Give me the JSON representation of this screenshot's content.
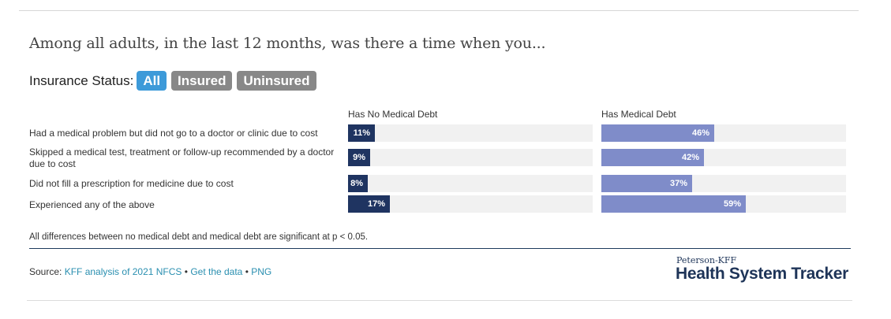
{
  "title": "Among all adults, in the last 12 months, was there a time when you...",
  "filter": {
    "label": "Insurance Status:",
    "options": [
      "All",
      "Insured",
      "Uninsured"
    ],
    "selected": "All"
  },
  "colors": {
    "no_debt": "#1f3461",
    "debt": "#7f8cc9",
    "track": "#f1f1f1",
    "active_pill": "#3d9ad9",
    "inactive_pill": "#888888"
  },
  "chart_data": {
    "type": "bar",
    "orientation": "horizontal",
    "xlim": [
      0,
      100
    ],
    "categories": [
      "Had a medical problem but did not go to a doctor or clinic due to cost",
      "Skipped a medical test, treatment or follow-up recommended by a doctor due to cost",
      "Did not fill a prescription for medicine due to cost",
      "Experienced any of the above"
    ],
    "series": [
      {
        "name": "Has No Medical Debt",
        "values": [
          11,
          9,
          8,
          17
        ],
        "labels": [
          "11%",
          "9%",
          "8%",
          "17%"
        ]
      },
      {
        "name": "Has Medical Debt",
        "values": [
          46,
          42,
          37,
          59
        ],
        "labels": [
          "46%",
          "42%",
          "37%",
          "59%"
        ]
      }
    ]
  },
  "note": "All differences between no medical debt and medical debt are significant at p < 0.05.",
  "source": {
    "prefix": "Source: ",
    "link1": "KFF analysis of 2021 NFCS",
    "sep": " • ",
    "link2": "Get the data",
    "link3": "PNG"
  },
  "logo": {
    "small": "Peterson-KFF",
    "big": "Health System Tracker"
  }
}
